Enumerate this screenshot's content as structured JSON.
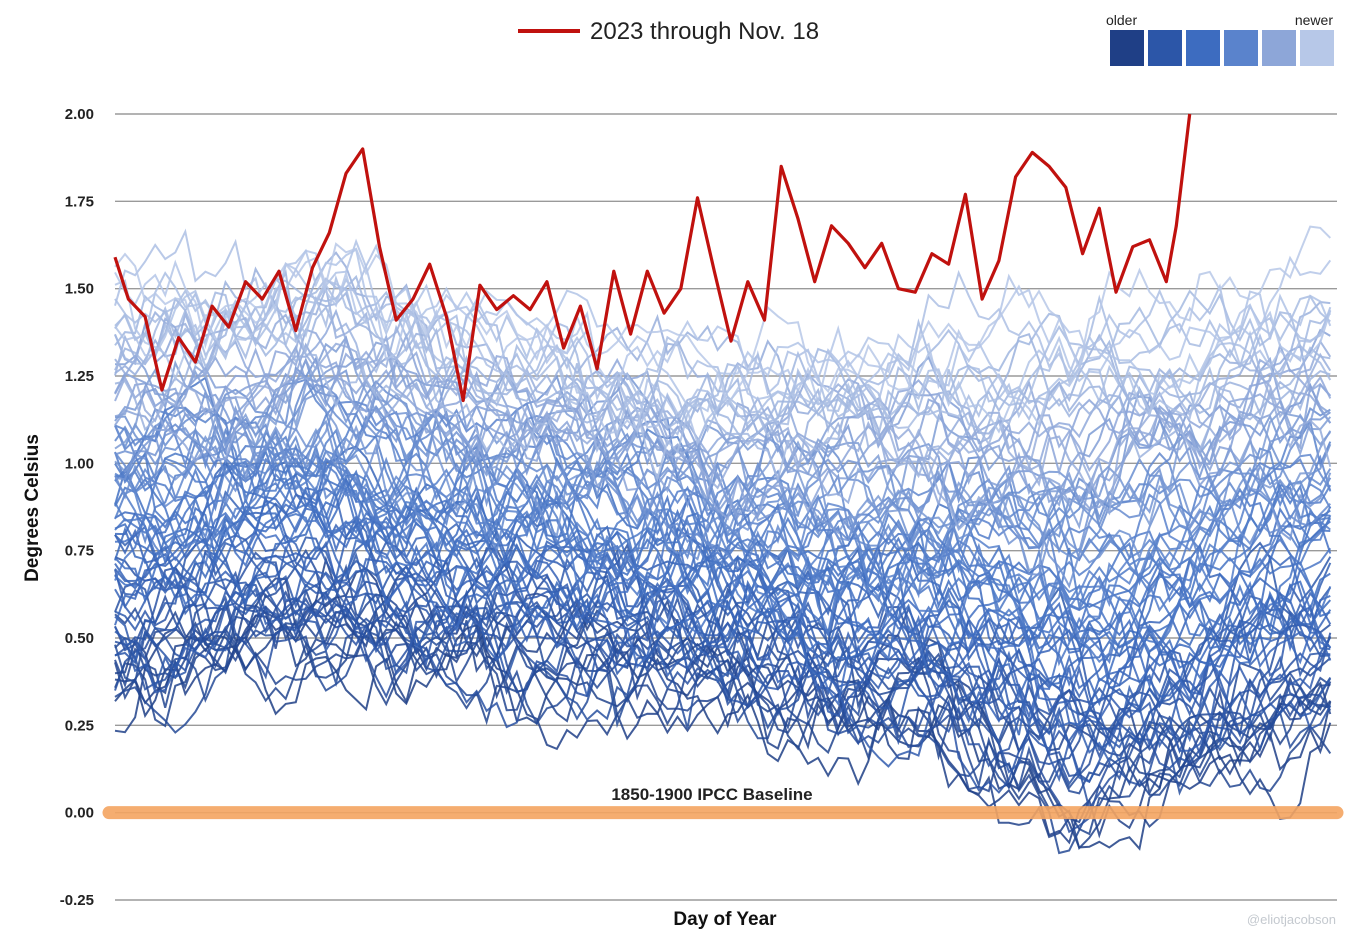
{
  "chart_data": {
    "type": "line",
    "title": "",
    "xlabel": "Day of Year",
    "ylabel": "Degrees Celsius",
    "x_range": [
      1,
      366
    ],
    "ylim": [
      -0.25,
      2.0
    ],
    "yticks": [
      "-0.25",
      "0.00",
      "0.25",
      "0.50",
      "0.75",
      "1.00",
      "1.25",
      "1.50",
      "1.75",
      "2.00"
    ],
    "grid": "horizontal",
    "legend": {
      "line_label": "2023 through Nov. 18",
      "scale_older": "older",
      "scale_newer": "newer",
      "scale_colors": [
        "#1f3f86",
        "#2c56a8",
        "#3d6cc0",
        "#5a83cc",
        "#8da6d8",
        "#b7c8e8"
      ]
    },
    "highlight_series": {
      "name": "2023 through Nov. 18",
      "color": "#c0110e",
      "x": [
        1,
        5,
        10,
        15,
        20,
        25,
        30,
        35,
        40,
        45,
        50,
        55,
        60,
        65,
        70,
        75,
        80,
        85,
        90,
        95,
        100,
        105,
        110,
        115,
        120,
        125,
        130,
        135,
        140,
        145,
        150,
        155,
        160,
        165,
        170,
        175,
        180,
        185,
        190,
        195,
        200,
        205,
        210,
        215,
        220,
        225,
        230,
        235,
        240,
        245,
        250,
        255,
        260,
        265,
        270,
        275,
        280,
        285,
        290,
        295,
        300,
        305,
        310,
        315,
        318,
        322
      ],
      "y": [
        1.59,
        1.47,
        1.42,
        1.21,
        1.36,
        1.29,
        1.45,
        1.39,
        1.52,
        1.47,
        1.55,
        1.38,
        1.56,
        1.66,
        1.83,
        1.9,
        1.62,
        1.41,
        1.47,
        1.57,
        1.42,
        1.18,
        1.51,
        1.44,
        1.48,
        1.44,
        1.52,
        1.33,
        1.45,
        1.27,
        1.55,
        1.37,
        1.55,
        1.43,
        1.5,
        1.76,
        1.55,
        1.35,
        1.52,
        1.41,
        1.85,
        1.7,
        1.52,
        1.68,
        1.63,
        1.56,
        1.63,
        1.5,
        1.49,
        1.6,
        1.57,
        1.77,
        1.47,
        1.58,
        1.82,
        1.89,
        1.85,
        1.79,
        1.6,
        1.73,
        1.49,
        1.62,
        1.64,
        1.52,
        1.68,
        2.0
      ]
    },
    "background_series": {
      "description_count": 84,
      "years_range": [
        "older",
        "newer"
      ],
      "day_start": 1,
      "day_end": 366,
      "approx_mean_by_period": [
        {
          "x": 1,
          "older": 0.38,
          "newer": 1.45
        },
        {
          "x": 60,
          "older": 0.45,
          "newer": 1.55
        },
        {
          "x": 110,
          "older": 0.4,
          "newer": 1.4
        },
        {
          "x": 190,
          "older": 0.32,
          "newer": 1.28
        },
        {
          "x": 250,
          "older": 0.18,
          "newer": 1.3
        },
        {
          "x": 290,
          "older": 0.0,
          "newer": 1.35
        },
        {
          "x": 366,
          "older": 0.28,
          "newer": 1.5
        }
      ]
    },
    "baseline": {
      "label": "1850-1900 IPCC Baseline",
      "value": 0.0,
      "color": "#f4a460"
    },
    "watermark": "@eliotjacobson"
  }
}
